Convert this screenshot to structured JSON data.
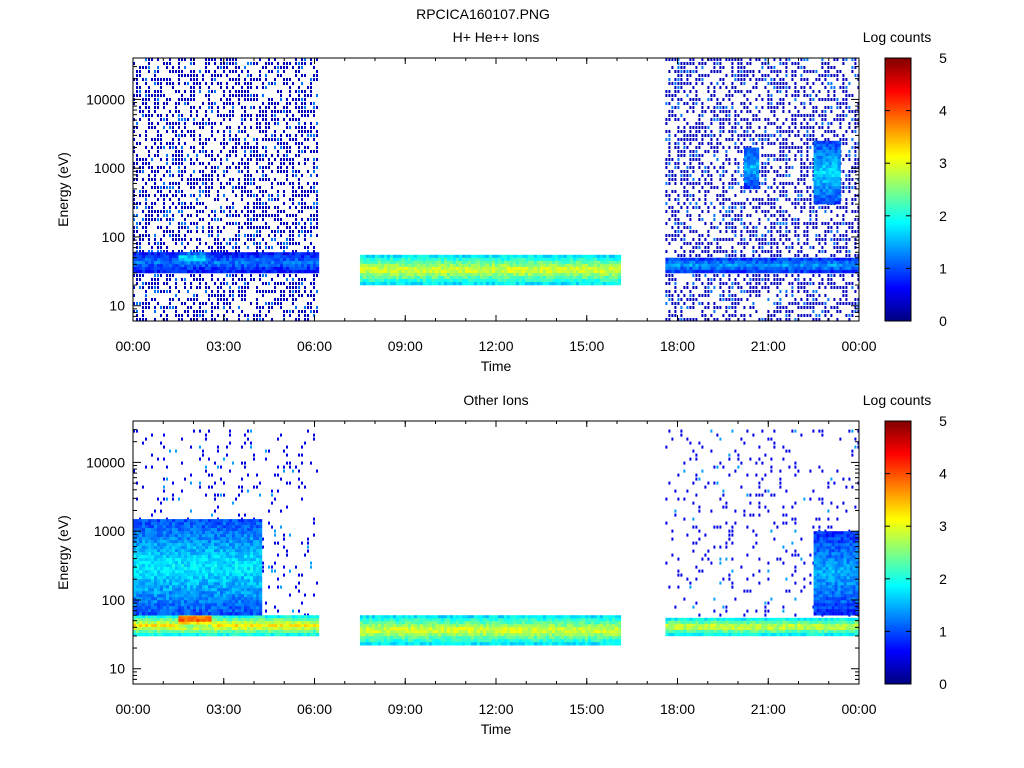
{
  "figure_title": "RPCICA160107.PNG",
  "colorbar": {
    "label": "Log counts",
    "ticks": [
      "0",
      "1",
      "2",
      "3",
      "4",
      "5"
    ],
    "range": [
      0,
      5
    ],
    "colormap": [
      "#000080",
      "#0000ff",
      "#0080ff",
      "#00ffff",
      "#80ff80",
      "#ffff00",
      "#ff8000",
      "#ff0000",
      "#800000"
    ]
  },
  "chart_data": [
    {
      "type": "heatmap",
      "title": "H+ He++ Ions",
      "xlabel": "Time",
      "ylabel": "Energy (eV)",
      "x_ticks": [
        "00:00",
        "03:00",
        "06:00",
        "09:00",
        "12:00",
        "15:00",
        "18:00",
        "21:00",
        "00:00"
      ],
      "y_ticks": [
        "10",
        "100",
        "1000",
        "10000"
      ],
      "y_scale": "log",
      "ylim": [
        6,
        40000
      ],
      "xlim_hours": [
        0,
        24
      ],
      "value_label": "Log counts",
      "value_range": [
        0,
        5
      ],
      "data_coverage_hours": [
        [
          0,
          6.1
        ],
        [
          7.5,
          16.1
        ],
        [
          17.6,
          24
        ]
      ],
      "bands": [
        {
          "hours": [
            0,
            6.1
          ],
          "energy_eV": [
            30,
            60
          ],
          "log_counts": 1.2
        },
        {
          "hours": [
            1.5,
            2.3
          ],
          "energy_eV": [
            40,
            60
          ],
          "log_counts": 1.8
        },
        {
          "hours": [
            7.5,
            16.1
          ],
          "energy_eV": [
            20,
            55
          ],
          "log_counts": 3.0
        },
        {
          "hours": [
            17.6,
            24
          ],
          "energy_eV": [
            30,
            50
          ],
          "log_counts": 1.4
        },
        {
          "hours": [
            20.2,
            20.6
          ],
          "energy_eV": [
            500,
            2000
          ],
          "log_counts": 1.6
        },
        {
          "hours": [
            22.5,
            23.3
          ],
          "energy_eV": [
            300,
            2500
          ],
          "log_counts": 1.7
        }
      ],
      "background_noise": {
        "hours": [
          [
            0,
            6.1
          ],
          [
            17.6,
            24
          ]
        ],
        "energy_eV": [
          6,
          40000
        ],
        "log_counts": 0.3
      }
    },
    {
      "type": "heatmap",
      "title": "Other Ions",
      "xlabel": "Time",
      "ylabel": "Energy (eV)",
      "x_ticks": [
        "00:00",
        "03:00",
        "06:00",
        "09:00",
        "12:00",
        "15:00",
        "18:00",
        "21:00",
        "00:00"
      ],
      "y_ticks": [
        "10",
        "100",
        "1000",
        "10000"
      ],
      "y_scale": "log",
      "ylim": [
        6,
        40000
      ],
      "xlim_hours": [
        0,
        24
      ],
      "value_label": "Log counts",
      "value_range": [
        0,
        5
      ],
      "data_coverage_hours": [
        [
          0,
          6.1
        ],
        [
          7.5,
          16.1
        ],
        [
          17.6,
          24
        ]
      ],
      "bands": [
        {
          "hours": [
            0,
            6.1
          ],
          "energy_eV": [
            30,
            60
          ],
          "log_counts": 3.2
        },
        {
          "hours": [
            1.5,
            2.5
          ],
          "energy_eV": [
            40,
            70
          ],
          "log_counts": 4.2
        },
        {
          "hours": [
            0,
            4.2
          ],
          "energy_eV": [
            60,
            1500
          ],
          "log_counts": 1.8
        },
        {
          "hours": [
            7.5,
            16.1
          ],
          "energy_eV": [
            22,
            60
          ],
          "log_counts": 3.0
        },
        {
          "hours": [
            17.6,
            24
          ],
          "energy_eV": [
            30,
            55
          ],
          "log_counts": 3.0
        },
        {
          "hours": [
            22.5,
            24
          ],
          "energy_eV": [
            60,
            1000
          ],
          "log_counts": 1.5
        }
      ],
      "background_noise": {
        "hours": [
          [
            0,
            6.1
          ],
          [
            17.6,
            24
          ]
        ],
        "energy_eV": [
          60,
          30000
        ],
        "log_counts": 0.5
      }
    }
  ]
}
